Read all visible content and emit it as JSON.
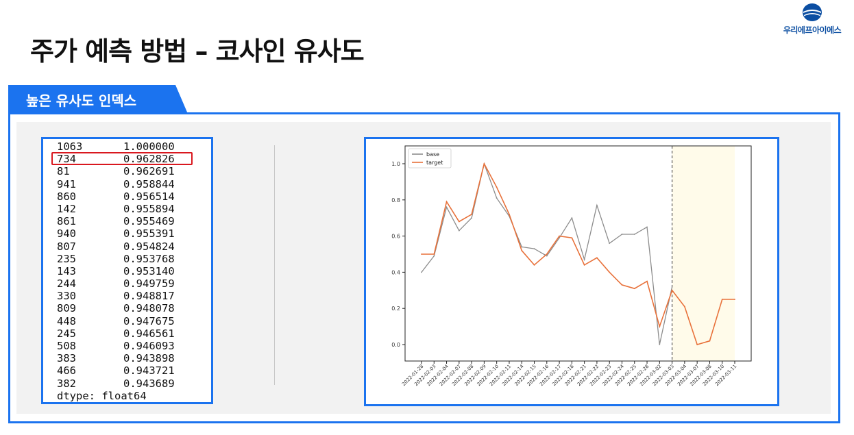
{
  "logo": {
    "text": "우리에프아이에스",
    "brand_color": "#0b4ea2"
  },
  "title": "주가 예측 방법 – 코사인 유사도",
  "section": {
    "label": "높은 유사도 인덱스",
    "accent": "#1b73ef"
  },
  "series": {
    "rows": [
      {
        "index": "1063",
        "value": "1.000000"
      },
      {
        "index": "734",
        "value": "0.962826"
      },
      {
        "index": "81",
        "value": "0.962691"
      },
      {
        "index": "941",
        "value": "0.958844"
      },
      {
        "index": "860",
        "value": "0.956514"
      },
      {
        "index": "142",
        "value": "0.955894"
      },
      {
        "index": "861",
        "value": "0.955469"
      },
      {
        "index": "940",
        "value": "0.955391"
      },
      {
        "index": "807",
        "value": "0.954824"
      },
      {
        "index": "235",
        "value": "0.953768"
      },
      {
        "index": "143",
        "value": "0.953140"
      },
      {
        "index": "244",
        "value": "0.949759"
      },
      {
        "index": "330",
        "value": "0.948817"
      },
      {
        "index": "809",
        "value": "0.948078"
      },
      {
        "index": "448",
        "value": "0.947675"
      },
      {
        "index": "245",
        "value": "0.946561"
      },
      {
        "index": "508",
        "value": "0.946093"
      },
      {
        "index": "383",
        "value": "0.943898"
      },
      {
        "index": "466",
        "value": "0.943721"
      },
      {
        "index": "382",
        "value": "0.943689"
      }
    ],
    "dtype": "dtype:  float64",
    "highlight_color": "#d9181f"
  },
  "chart_data": {
    "type": "line",
    "x": [
      "2022-01-28",
      "2022-02-03",
      "2022-02-04",
      "2022-02-07",
      "2022-02-08",
      "2022-02-09",
      "2022-02-10",
      "2022-02-11",
      "2022-02-14",
      "2022-02-15",
      "2022-02-16",
      "2022-02-17",
      "2022-02-18",
      "2022-02-21",
      "2022-02-22",
      "2022-02-23",
      "2022-02-24",
      "2022-02-25",
      "2022-02-28",
      "2022-03-02",
      "2022-03-03",
      "2022-03-04",
      "2022-03-07",
      "2022-03-08",
      "2022-03-10",
      "2022-03-11"
    ],
    "series": [
      {
        "name": "base",
        "color": "#8c8c8c",
        "values": [
          0.4,
          0.49,
          0.76,
          0.63,
          0.7,
          1.0,
          0.81,
          0.71,
          0.54,
          0.53,
          0.49,
          0.59,
          0.7,
          0.47,
          0.77,
          0.56,
          0.61,
          0.61,
          0.65,
          0.0,
          0.32,
          null,
          null,
          null,
          null,
          null
        ]
      },
      {
        "name": "target",
        "color": "#e8713a",
        "values": [
          0.5,
          0.5,
          0.79,
          0.68,
          0.72,
          1.0,
          0.87,
          0.72,
          0.52,
          0.44,
          0.5,
          0.6,
          0.59,
          0.44,
          0.48,
          0.4,
          0.33,
          0.31,
          0.35,
          0.1,
          0.3,
          0.21,
          0.0,
          0.02,
          0.25,
          0.25
        ]
      }
    ],
    "ylim": [
      0.0,
      1.0
    ],
    "yticks": [
      "0.0",
      "0.2",
      "0.4",
      "0.6",
      "0.8",
      "1.0"
    ],
    "split_index": 20,
    "forecast_shade": "#fffbea",
    "legend_position": "top-left",
    "xlabel": "",
    "ylabel": "",
    "title": ""
  }
}
